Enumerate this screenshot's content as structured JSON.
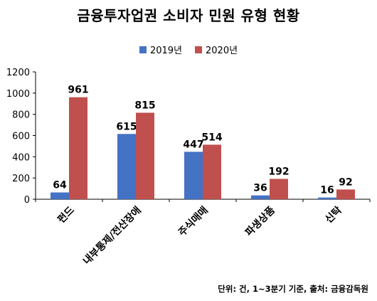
{
  "colors": {
    "s2019": "#4472C4",
    "s2020": "#C0504D",
    "axis": "#000000"
  },
  "chart_data": {
    "type": "bar",
    "title": "금융투자업권 소비자 민원 유형 현황",
    "categories": [
      "펀드",
      "내부통제/전산장애",
      "주식매매",
      "파생상품",
      "신탁"
    ],
    "series": [
      {
        "name": "2019년",
        "values": [
          64,
          615,
          447,
          36,
          16
        ]
      },
      {
        "name": "2020년",
        "values": [
          961,
          815,
          514,
          192,
          92
        ]
      }
    ],
    "ylim": [
      0,
      1200
    ],
    "yticks": [
      0,
      200,
      400,
      600,
      800,
      1000,
      1200
    ],
    "legend": "top-center",
    "grid": false,
    "note": "단위: 건, 1~3분기 기준, 출처: 금융감독원"
  }
}
